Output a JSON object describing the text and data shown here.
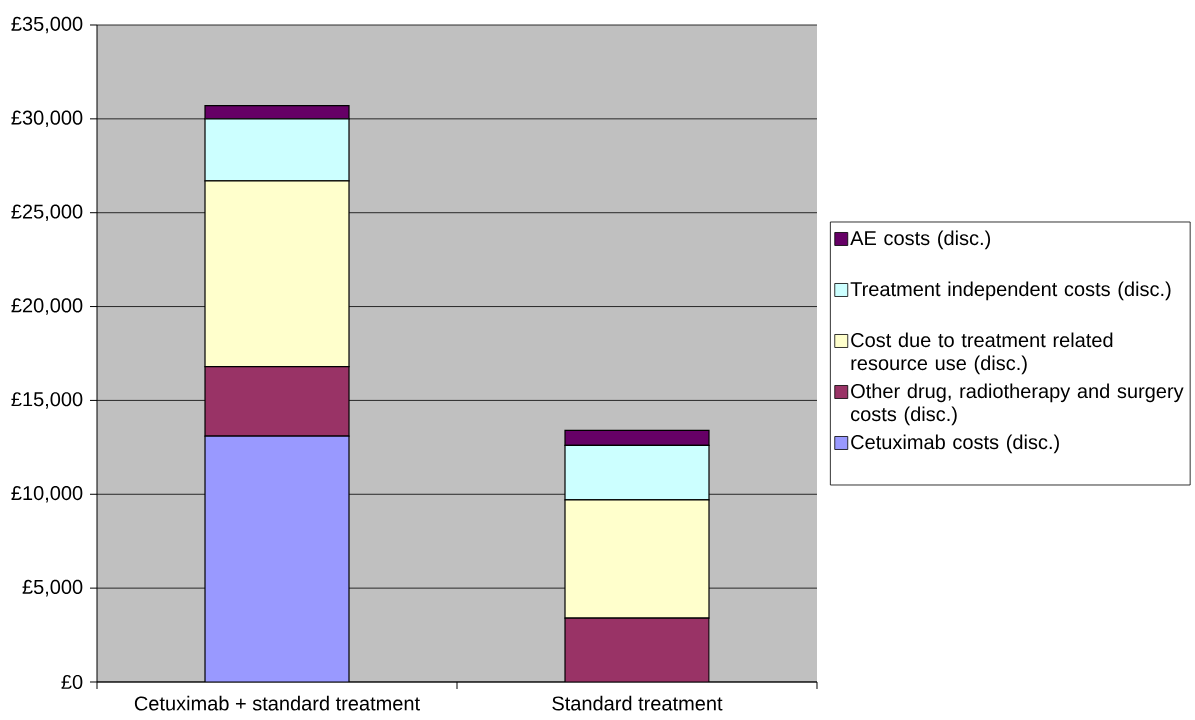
{
  "chart_data": {
    "type": "bar",
    "stacked": true,
    "categories": [
      "Cetuximab + standard treatment",
      "Standard treatment"
    ],
    "series": [
      {
        "name": "Cetuximab costs (disc.)",
        "color": "#9999ff",
        "values": [
          13100,
          0
        ]
      },
      {
        "name": "Other drug, radiotherapy and surgery costs (disc.)",
        "color": "#993366",
        "values": [
          3700,
          3400
        ]
      },
      {
        "name": "Cost due to treatment related resource use (disc.)",
        "color": "#ffffcc",
        "values": [
          9900,
          6300
        ]
      },
      {
        "name": "Treatment independent costs (disc.)",
        "color": "#ccffff",
        "values": [
          3300,
          2900
        ]
      },
      {
        "name": "AE costs (disc.)",
        "color": "#660066",
        "values": [
          700,
          800
        ]
      }
    ],
    "ylim": [
      0,
      35000
    ],
    "yticks": [
      {
        "value": 0,
        "label": "£0"
      },
      {
        "value": 5000,
        "label": "£5,000"
      },
      {
        "value": 10000,
        "label": "£10,000"
      },
      {
        "value": 15000,
        "label": "£15,000"
      },
      {
        "value": 20000,
        "label": "£20,000"
      },
      {
        "value": 25000,
        "label": "£25,000"
      },
      {
        "value": 30000,
        "label": "£30,000"
      },
      {
        "value": 35000,
        "label": "£35,000"
      }
    ],
    "grid": "y",
    "legend": "right"
  }
}
